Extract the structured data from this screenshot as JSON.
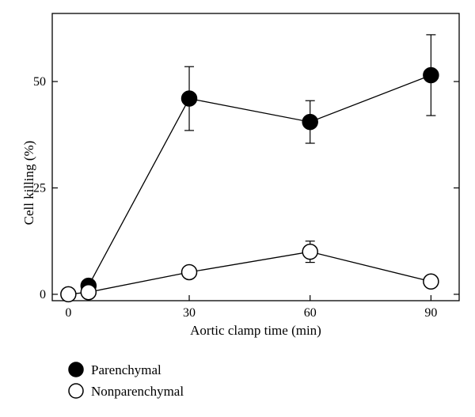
{
  "chart_data": {
    "type": "line",
    "title": "",
    "xlabel": "Aortic clamp time (min)",
    "ylabel": "Cell killing (%)",
    "xlim": [
      -4,
      97
    ],
    "ylim": [
      -1.5,
      66
    ],
    "x_ticks": [
      0,
      30,
      60,
      90
    ],
    "x_tick_labels": [
      "0",
      "30",
      "60",
      "90"
    ],
    "y_ticks": [
      0,
      25,
      50
    ],
    "y_tick_labels": [
      "0",
      "25",
      "50"
    ],
    "grid": false,
    "legend_position": "bottom-left",
    "series": [
      {
        "name": "Parenchymal",
        "marker": "filled-circle",
        "color": "#000000",
        "x": [
          5,
          30,
          60,
          90
        ],
        "y": [
          2,
          46,
          40.5,
          51.5
        ],
        "err": [
          0,
          7.5,
          5,
          9.5
        ]
      },
      {
        "name": "Nonparenchymal",
        "marker": "open-circle",
        "color": "#000000",
        "x": [
          0,
          5,
          30,
          60,
          90
        ],
        "y": [
          0,
          0.5,
          5.2,
          10,
          3
        ],
        "err": [
          0,
          0,
          1.2,
          2.5,
          0
        ]
      }
    ]
  }
}
